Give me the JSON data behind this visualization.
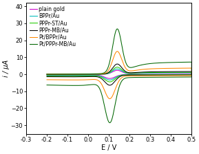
{
  "xlabel": "E / V",
  "ylabel": "i / μA",
  "xlim": [
    -0.3,
    0.5
  ],
  "ylim": [
    -35,
    42
  ],
  "xticks": [
    -0.3,
    -0.2,
    -0.1,
    0.0,
    0.1,
    0.2,
    0.3,
    0.4,
    0.5
  ],
  "yticks": [
    -30,
    -20,
    -10,
    0,
    10,
    20,
    30,
    40
  ],
  "series": [
    {
      "label": "plain gold",
      "color": "#cc00cc"
    },
    {
      "label": "BPPr/Au",
      "color": "#00bbbb"
    },
    {
      "label": "PPPr-ST/Au",
      "color": "#22cc00"
    },
    {
      "label": "PPPr-MB/Au",
      "color": "#000000"
    },
    {
      "label": "Pt/BPPr/Au",
      "color": "#ff8800"
    },
    {
      "label": "Pt/PPPr-MB/Au",
      "color": "#006600"
    }
  ],
  "scales": [
    1.0,
    1.35,
    1.8,
    2.6,
    5.8,
    11.5
  ],
  "background_color": "#ffffff",
  "legend_fontsize": 5.5,
  "axis_fontsize": 7,
  "tick_fontsize": 6
}
